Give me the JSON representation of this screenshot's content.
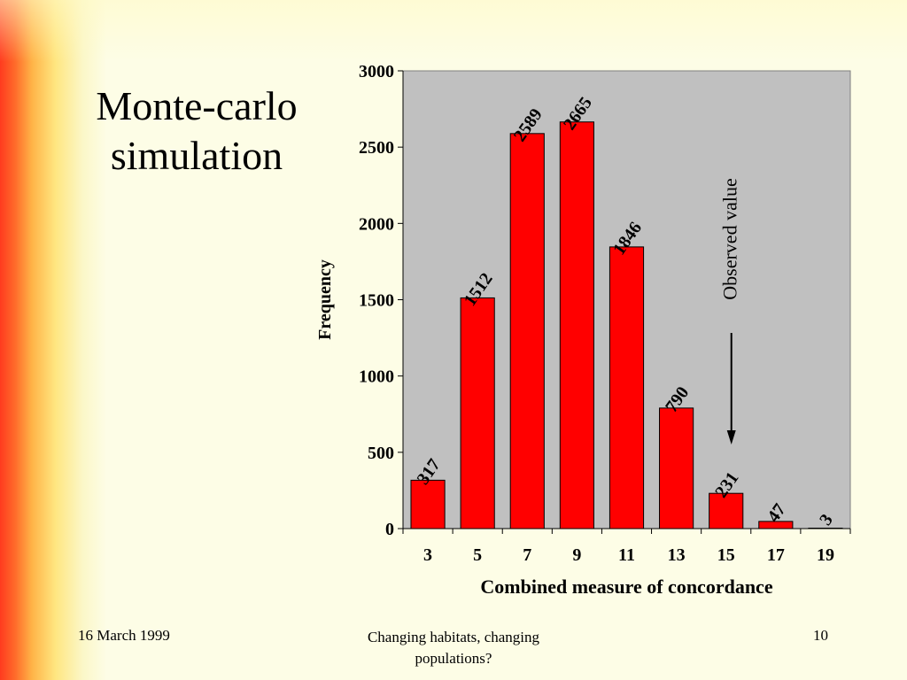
{
  "slide": {
    "title": "Monte-carlo\nsimulation",
    "footer_date": "16 March 1999",
    "footer_center": "Changing habitats, changing populations?",
    "page_number": "10"
  },
  "chart_data": {
    "type": "bar",
    "categories": [
      "3",
      "5",
      "7",
      "9",
      "11",
      "13",
      "15",
      "17",
      "19"
    ],
    "values": [
      317,
      1512,
      2589,
      2665,
      1846,
      790,
      231,
      47,
      3
    ],
    "data_labels": [
      "317",
      "1512",
      "2589",
      "2665",
      "1846",
      "790",
      "231",
      "47",
      "3"
    ],
    "xlabel": "Combined measure of concordance",
    "ylabel": "Frequency",
    "ylim": [
      0,
      3000
    ],
    "yticks": [
      0,
      500,
      1000,
      1500,
      2000,
      2500,
      3000
    ],
    "ytick_labels": [
      "0",
      "500",
      "1000",
      "1500",
      "2000",
      "2500",
      "3000"
    ],
    "grid": false,
    "annotation": {
      "text": "Observed value",
      "category": "15"
    },
    "colors": {
      "bar": "#ff0000",
      "plot_background": "#c0c0c0",
      "slide_background": "#fdfde6"
    }
  }
}
